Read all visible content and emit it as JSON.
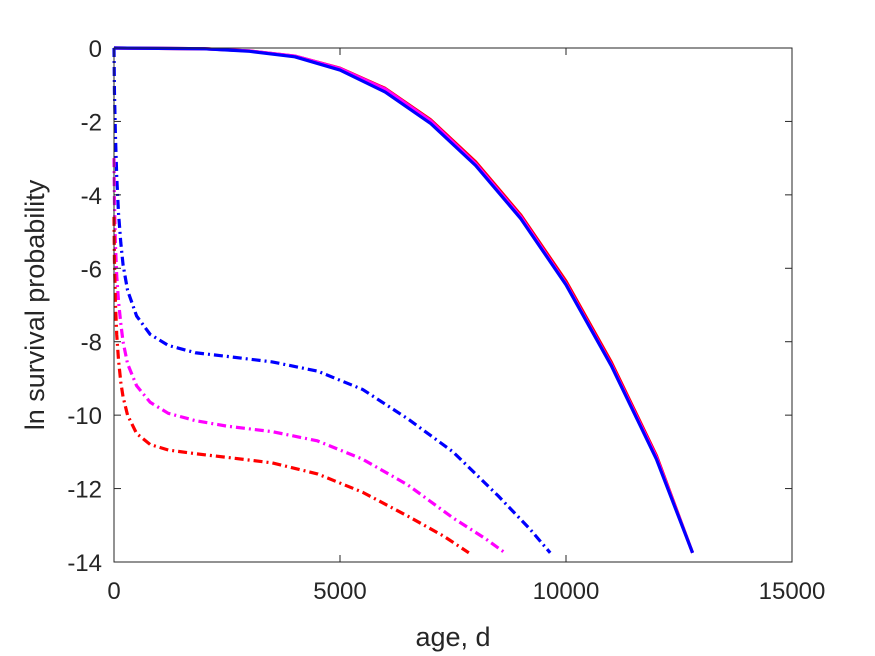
{
  "chart_data": {
    "type": "line",
    "title": "",
    "xlabel": "age, d",
    "ylabel": "ln survival probability",
    "xlim": [
      0,
      15000
    ],
    "ylim": [
      -14,
      0
    ],
    "xticks": [
      "0",
      "5000",
      "10000",
      "15000"
    ],
    "yticks": [
      "0",
      "-2",
      "-4",
      "-6",
      "-8",
      "-10",
      "-12",
      "-14"
    ],
    "xtick_values": [
      0,
      5000,
      10000,
      15000
    ],
    "ytick_values": [
      0,
      -2,
      -4,
      -6,
      -8,
      -10,
      -12,
      -14
    ],
    "grid": false,
    "legend": "none",
    "series": [
      {
        "color": "#ff0000",
        "style": "solid",
        "x": [
          0,
          2000,
          3000,
          4000,
          5000,
          6000,
          7000,
          8000,
          9000,
          10000,
          11000,
          12000,
          12800
        ],
        "y": [
          0,
          -0.02,
          -0.08,
          -0.22,
          -0.55,
          -1.1,
          -1.95,
          -3.1,
          -4.55,
          -6.35,
          -8.55,
          -11.1,
          -13.75
        ]
      },
      {
        "color": "#ff00ff",
        "style": "solid",
        "x": [
          0,
          2000,
          3000,
          4000,
          5000,
          6000,
          7000,
          8000,
          9000,
          10000,
          11000,
          12000,
          12800
        ],
        "y": [
          0,
          -0.02,
          -0.08,
          -0.22,
          -0.56,
          -1.12,
          -1.98,
          -3.15,
          -4.6,
          -6.42,
          -8.62,
          -11.15,
          -13.75
        ]
      },
      {
        "color": "#0000ff",
        "style": "solid",
        "x": [
          0,
          2000,
          3000,
          4000,
          5000,
          6000,
          7000,
          8000,
          9000,
          10000,
          11000,
          12000,
          12800
        ],
        "y": [
          0,
          -0.02,
          -0.09,
          -0.24,
          -0.6,
          -1.2,
          -2.05,
          -3.2,
          -4.65,
          -6.45,
          -8.65,
          -11.2,
          -13.75
        ]
      },
      {
        "color": "#0000ff",
        "style": "dashdot",
        "x": [
          0,
          10,
          30,
          60,
          100,
          150,
          200,
          300,
          500,
          800,
          1200,
          1800,
          2500,
          3500,
          4500,
          5500,
          6500,
          7500,
          8500,
          9200,
          9650
        ],
        "y": [
          0,
          -1.2,
          -2.3,
          -3.5,
          -4.5,
          -5.3,
          -5.9,
          -6.6,
          -7.3,
          -7.8,
          -8.1,
          -8.3,
          -8.4,
          -8.55,
          -8.8,
          -9.3,
          -10.1,
          -11.0,
          -12.2,
          -13.1,
          -13.75
        ]
      },
      {
        "color": "#ff00ff",
        "style": "dashdot",
        "x": [
          0,
          10,
          30,
          60,
          100,
          150,
          200,
          300,
          500,
          800,
          1200,
          1800,
          2500,
          3500,
          4500,
          5500,
          6500,
          7500,
          8200,
          8650
        ],
        "y": [
          -3.0,
          -4.2,
          -5.3,
          -6.2,
          -6.9,
          -7.5,
          -8.0,
          -8.6,
          -9.2,
          -9.65,
          -9.95,
          -10.15,
          -10.3,
          -10.45,
          -10.7,
          -11.2,
          -11.9,
          -12.8,
          -13.35,
          -13.75
        ]
      },
      {
        "color": "#ff0000",
        "style": "dashdot",
        "x": [
          0,
          10,
          30,
          60,
          100,
          150,
          200,
          300,
          500,
          800,
          1200,
          1800,
          2500,
          3500,
          4500,
          5500,
          6500,
          7300,
          7850
        ],
        "y": [
          -4.6,
          -5.8,
          -6.9,
          -7.8,
          -8.5,
          -9.1,
          -9.5,
          -10.0,
          -10.5,
          -10.8,
          -10.95,
          -11.05,
          -11.15,
          -11.3,
          -11.6,
          -12.1,
          -12.75,
          -13.3,
          -13.75
        ]
      }
    ]
  }
}
